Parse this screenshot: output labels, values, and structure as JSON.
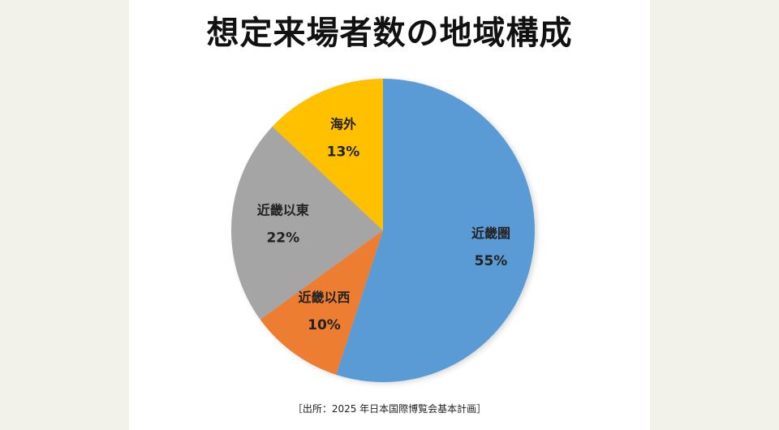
{
  "title": "想定来場者数の地域構成",
  "source": "［出所：2025 年日本国際博覧会基本計画］",
  "chart_data": {
    "type": "pie",
    "start_angle_deg": 0,
    "direction": "clockwise",
    "slices": [
      {
        "label": "近畿圏",
        "value": 55,
        "display": "55%",
        "color": "#5b9bd5"
      },
      {
        "label": "近畿以西",
        "value": 10,
        "display": "10%",
        "color": "#ed7d31"
      },
      {
        "label": "近畿以東",
        "value": 22,
        "display": "22%",
        "color": "#a5a5a5"
      },
      {
        "label": "海外",
        "value": 13,
        "display": "13%",
        "color": "#ffc000"
      }
    ]
  }
}
